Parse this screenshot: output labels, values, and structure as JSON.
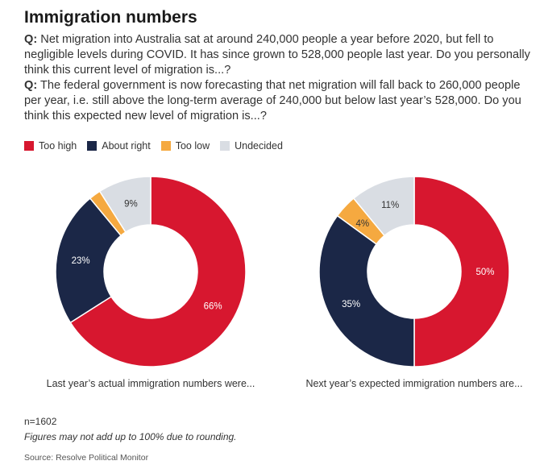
{
  "title": "Immigration numbers",
  "questions": [
    {
      "label": "Q:",
      "text": " Net migration into Australia sat at around 240,000 people a year before 2020, but fell to negligible levels during COVID. It has since grown to 528,000 people last year. Do you personally think this current level of migration is...?"
    },
    {
      "label": "Q:",
      "text": " The federal government is now forecasting that net migration will fall back to 260,000 people per year, i.e. still above the long-term average of 240,000 but below last year’s 528,000. Do you think this expected new level of migration is...?"
    }
  ],
  "legend": [
    {
      "label": "Too high",
      "color": "#d7172f"
    },
    {
      "label": "About right",
      "color": "#1b2747"
    },
    {
      "label": "Too low",
      "color": "#f5a940"
    },
    {
      "label": "Undecided",
      "color": "#d9dde3"
    }
  ],
  "chart_data": [
    {
      "type": "pie",
      "caption": "Last year’s actual immigration numbers were...",
      "categories": [
        "Too high",
        "About right",
        "Too low",
        "Undecided"
      ],
      "values": [
        66,
        23,
        2,
        9
      ],
      "labels": [
        "66%",
        "23%",
        "",
        "9%"
      ]
    },
    {
      "type": "pie",
      "caption": "Next year’s expected immigration numbers are...",
      "categories": [
        "Too high",
        "About right",
        "Too low",
        "Undecided"
      ],
      "values": [
        50,
        35,
        4,
        11
      ],
      "labels": [
        "50%",
        "35%",
        "4%",
        "11%"
      ]
    }
  ],
  "footer": {
    "n": "n=1602",
    "note": "Figures may not add up to 100% due to rounding.",
    "source": "Source: Resolve Political Monitor"
  }
}
